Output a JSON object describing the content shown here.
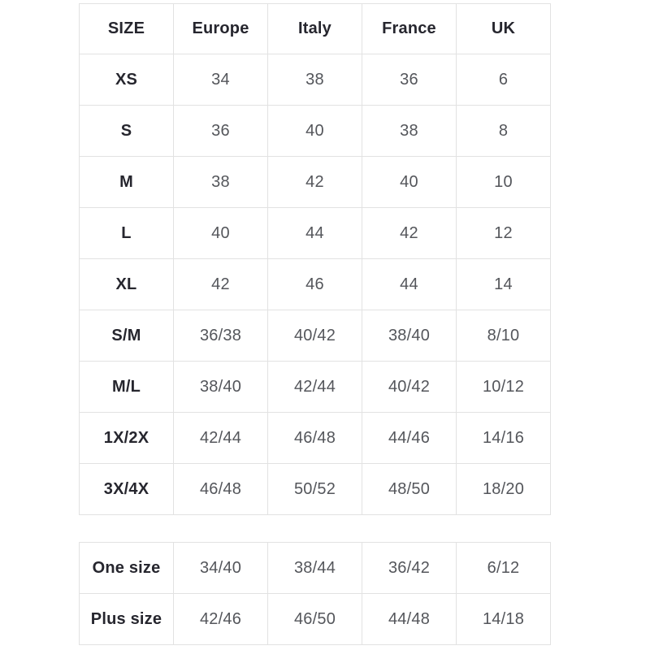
{
  "chart_data": [
    {
      "type": "table",
      "columns": [
        "SIZE",
        "Europe",
        "Italy",
        "France",
        "UK"
      ],
      "rows": [
        [
          "XS",
          "34",
          "38",
          "36",
          "6"
        ],
        [
          "S",
          "36",
          "40",
          "38",
          "8"
        ],
        [
          "M",
          "38",
          "42",
          "40",
          "10"
        ],
        [
          "L",
          "40",
          "44",
          "42",
          "12"
        ],
        [
          "XL",
          "42",
          "46",
          "44",
          "14"
        ],
        [
          "S/M",
          "36/38",
          "40/42",
          "38/40",
          "8/10"
        ],
        [
          "M/L",
          "38/40",
          "42/44",
          "40/42",
          "10/12"
        ],
        [
          "1X/2X",
          "42/44",
          "46/48",
          "44/46",
          "14/16"
        ],
        [
          "3X/4X",
          "46/48",
          "50/52",
          "48/50",
          "18/20"
        ]
      ],
      "layout": {
        "grid": "all-cell-borders",
        "header_row": true
      }
    },
    {
      "type": "table",
      "rows": [
        [
          "One size",
          "34/40",
          "38/44",
          "36/42",
          "6/12"
        ],
        [
          "Plus size",
          "42/46",
          "46/50",
          "44/48",
          "14/18"
        ]
      ],
      "layout": {
        "grid": "all-cell-borders",
        "header_row": false,
        "columns_align_with_table_above": true
      }
    }
  ],
  "colors": {
    "background": "#ffffff",
    "border": "#e2e2e2",
    "header_text": "#26262e",
    "value_text": "#54565b"
  }
}
